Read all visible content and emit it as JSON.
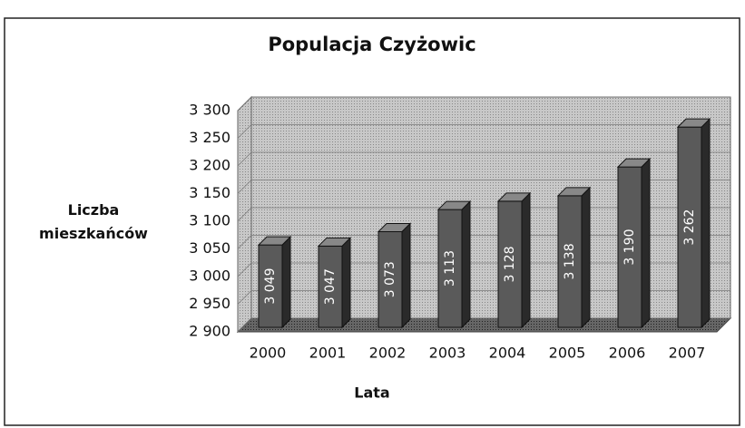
{
  "chart_data": {
    "type": "bar3d",
    "title": "Populacja Czyżowic",
    "x_label": "Lata",
    "y_label": "Liczba mieszkańców",
    "categories": [
      "2000",
      "2001",
      "2002",
      "2003",
      "2004",
      "2005",
      "2006",
      "2007"
    ],
    "values": [
      3049,
      3047,
      3073,
      3113,
      3128,
      3138,
      3190,
      3262
    ],
    "value_labels": [
      "3 049",
      "3 047",
      "3 073",
      "3 113",
      "3 128",
      "3 138",
      "3 190",
      "3 262"
    ],
    "color": "#5a5a5a",
    "ylim": [
      2900,
      3300
    ],
    "yticks": [
      {
        "value": 2900,
        "label": "2 900"
      },
      {
        "value": 2950,
        "label": "2 950"
      },
      {
        "value": 3000,
        "label": "3 000"
      },
      {
        "value": 3050,
        "label": "3 050"
      },
      {
        "value": 3100,
        "label": "3 100"
      },
      {
        "value": 3150,
        "label": "3 150"
      },
      {
        "value": 3200,
        "label": "3 200"
      },
      {
        "value": 3250,
        "label": "3 250"
      },
      {
        "value": 3300,
        "label": "3 300"
      }
    ],
    "grid": true
  }
}
